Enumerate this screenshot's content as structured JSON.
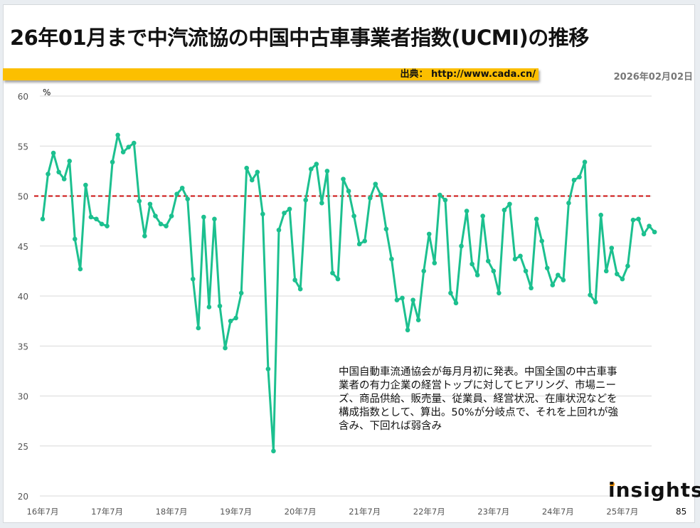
{
  "slide": {
    "title": "26年01月まで中汽流協の中国中古車事業者指数(UCMI)の推移",
    "source_label": "出典： http://www.cada.cn/",
    "date": "2026年02月02日",
    "page_number": "85",
    "logo_text": "insights",
    "annotation": "中国自動車流通協会が毎月月初に発表。中国全国の中古車事業者の有力企業の経営トップに対してヒアリング、市場ニーズ、商品供給、販売量、従業員、経営状況、在庫状況などを構成指数として、算出。50%が分岐点で、それを上回れが強含み、下回れば弱含み"
  },
  "colors": {
    "line": "#1cc08f",
    "reference_line": "#cc1111",
    "source_bar": "#fcbf00",
    "grid": "#d9d9d9",
    "logo_dot": "#f39200"
  },
  "chart_data": {
    "type": "line",
    "title": "26年01月まで中汽流協の中国中古車事業者指数(UCMI)の推移",
    "xlabel": "",
    "ylabel": "%",
    "ylim": [
      20,
      60
    ],
    "yticks": [
      20,
      25,
      30,
      35,
      40,
      45,
      50,
      55,
      60
    ],
    "grid": true,
    "legend": null,
    "reference_line": {
      "y": 50,
      "style": "dashed",
      "color": "#cc1111"
    },
    "x_tick_labels": [
      "16年7月",
      "17年7月",
      "18年7月",
      "19年7月",
      "20年7月",
      "21年7月",
      "22年7月",
      "23年7月",
      "24年7月",
      "25年7月"
    ],
    "x_start": "2016-07",
    "x_end": "2026-01",
    "series": [
      {
        "name": "UCMI",
        "values": [
          47.7,
          52.2,
          54.3,
          52.4,
          51.7,
          53.5,
          45.7,
          42.7,
          51.1,
          47.9,
          47.7,
          47.2,
          47.0,
          53.4,
          56.1,
          54.4,
          54.9,
          55.3,
          49.5,
          46.0,
          49.2,
          48.0,
          47.2,
          47.0,
          48.0,
          50.2,
          50.8,
          49.7,
          41.7,
          36.8,
          47.9,
          38.9,
          47.7,
          39.0,
          34.8,
          37.5,
          37.8,
          40.3,
          52.8,
          51.6,
          52.4,
          48.2,
          32.7,
          24.5,
          46.6,
          48.3,
          48.7,
          41.6,
          40.7,
          49.6,
          52.7,
          53.2,
          49.3,
          52.5,
          42.3,
          41.7,
          51.7,
          50.5,
          48.0,
          45.2,
          45.5,
          49.8,
          51.2,
          50.1,
          46.7,
          43.7,
          39.6,
          39.8,
          36.6,
          39.6,
          37.6,
          42.5,
          46.2,
          43.3,
          50.1,
          49.6,
          40.3,
          39.3,
          45.0,
          48.5,
          43.2,
          42.1,
          48.0,
          43.5,
          42.5,
          40.3,
          48.6,
          49.2,
          43.7,
          44.0,
          42.5,
          40.8,
          47.7,
          45.5,
          42.8,
          41.1,
          42.1,
          41.6,
          49.3,
          51.6,
          51.9,
          53.4,
          40.1,
          39.4,
          48.1,
          42.5,
          44.8,
          42.2,
          41.7,
          43.0,
          47.6,
          47.7,
          46.2,
          47.0,
          46.4
        ]
      }
    ]
  }
}
